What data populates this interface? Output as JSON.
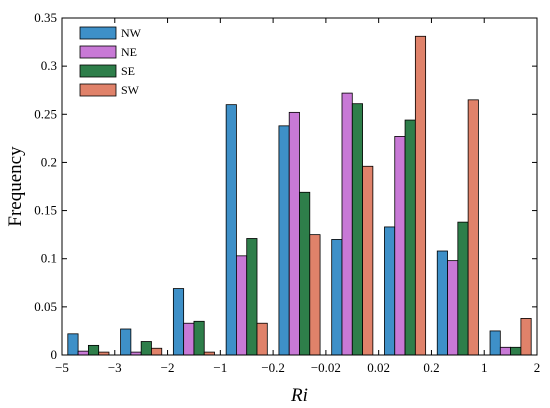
{
  "chart_data": {
    "type": "bar",
    "categories": [
      "-5 ~ -3",
      "-3 ~ -2",
      "-2 ~ -1",
      "-1 ~ -0.2",
      "-0.2 ~ -0.02",
      "-0.02 ~ 0.02",
      "0.02 ~ 0.2",
      "0.2 ~ 1",
      "1 ~ 2"
    ],
    "x_tick_labels": [
      "−5",
      "−3",
      "−2",
      "−1",
      "−0.2",
      "−0.02",
      "0.02",
      "0.2",
      "1",
      "2"
    ],
    "series": [
      {
        "name": "NW",
        "color": "#3e90c8",
        "values": [
          0.022,
          0.027,
          0.069,
          0.26,
          0.238,
          0.12,
          0.133,
          0.108,
          0.025
        ]
      },
      {
        "name": "NE",
        "color": "#c879d6",
        "values": [
          0.004,
          0.003,
          0.033,
          0.103,
          0.252,
          0.272,
          0.227,
          0.098,
          0.008
        ]
      },
      {
        "name": "SE",
        "color": "#2e7e4a",
        "values": [
          0.01,
          0.014,
          0.035,
          0.121,
          0.169,
          0.261,
          0.244,
          0.138,
          0.008
        ]
      },
      {
        "name": "SW",
        "color": "#e0826a",
        "values": [
          0.003,
          0.007,
          0.003,
          0.033,
          0.125,
          0.196,
          0.331,
          0.265,
          0.038
        ]
      }
    ],
    "ylim": [
      0,
      0.35
    ],
    "yticks": [
      "0",
      "0.05",
      "0.1",
      "0.15",
      "0.2",
      "0.25",
      "0.3",
      "0.35"
    ],
    "xlabel": "Ri",
    "ylabel": "Frequency",
    "legend_position": "top-left",
    "grid": false
  }
}
